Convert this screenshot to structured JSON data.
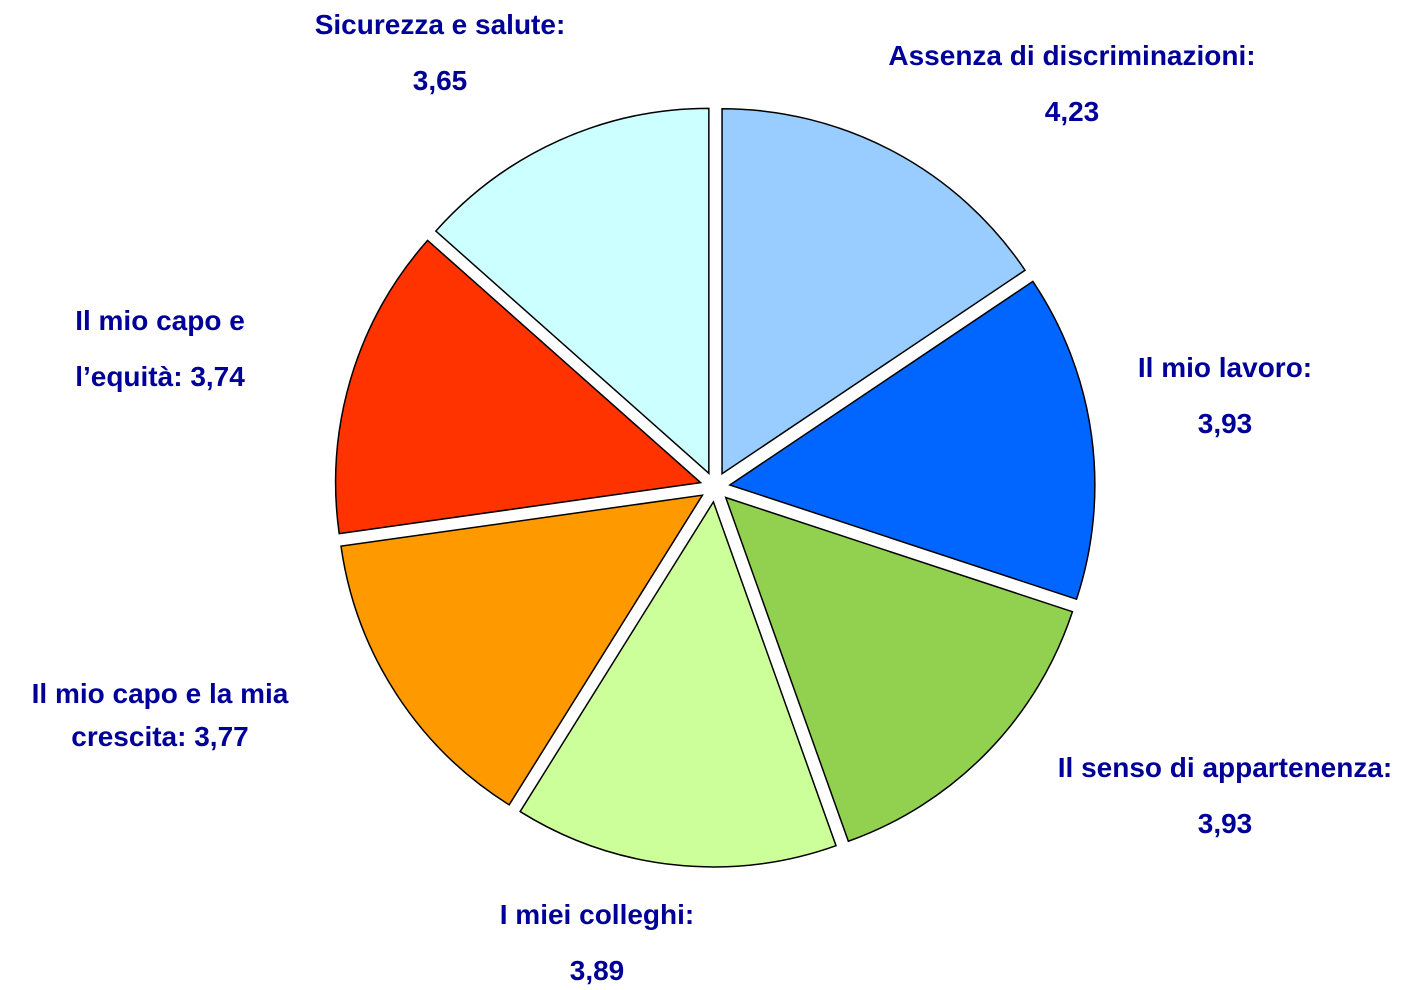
{
  "chart_data": {
    "type": "pie",
    "categories": [
      "Assenza di discriminazioni:",
      "Il mio lavoro:",
      "Il senso di appartenenza:",
      "I miei colleghi:",
      "Il mio capo e la mia crescita:",
      "Il mio capo e l’equità:",
      "Sicurezza e salute:"
    ],
    "values": [
      4.23,
      3.93,
      3.93,
      3.89,
      3.77,
      3.74,
      3.65
    ],
    "value_labels": [
      "4,23",
      "3,93",
      "3,93",
      "3,89",
      "3,77",
      "3,74",
      "3,65"
    ],
    "colors": [
      "#99ccff",
      "#0066ff",
      "#92d050",
      "#ccff99",
      "#ff9900",
      "#ff3300",
      "#ccffff"
    ]
  }
}
